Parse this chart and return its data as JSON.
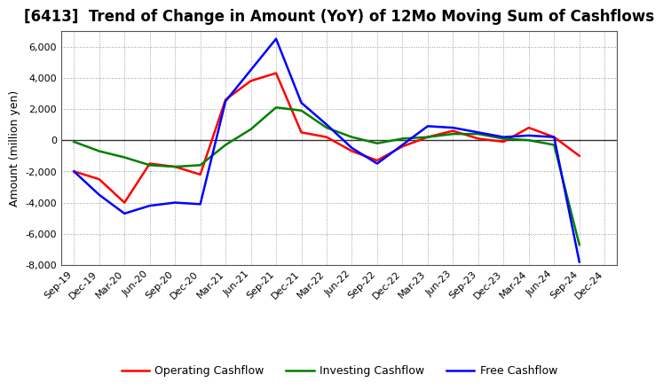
{
  "title": "[6413]  Trend of Change in Amount (YoY) of 12Mo Moving Sum of Cashflows",
  "ylabel": "Amount (million yen)",
  "x_labels": [
    "Sep-19",
    "Dec-19",
    "Mar-20",
    "Jun-20",
    "Sep-20",
    "Dec-20",
    "Mar-21",
    "Jun-21",
    "Sep-21",
    "Dec-21",
    "Mar-22",
    "Jun-22",
    "Sep-22",
    "Dec-22",
    "Mar-23",
    "Jun-23",
    "Sep-23",
    "Dec-23",
    "Mar-24",
    "Jun-24",
    "Sep-24",
    "Dec-24"
  ],
  "operating": [
    -2000,
    -2500,
    -4000,
    -1500,
    -1700,
    -2200,
    2600,
    3800,
    4300,
    500,
    200,
    -700,
    -1300,
    -400,
    200,
    600,
    100,
    -100,
    800,
    200,
    -1000,
    null
  ],
  "investing": [
    -100,
    -700,
    -1100,
    -1600,
    -1700,
    -1600,
    -300,
    700,
    2100,
    1900,
    800,
    200,
    -200,
    100,
    200,
    400,
    400,
    100,
    0,
    -300,
    -6700,
    null
  ],
  "free": [
    -2000,
    -3500,
    -4700,
    -4200,
    -4000,
    -4100,
    2500,
    4500,
    6500,
    2400,
    1000,
    -500,
    -1500,
    -300,
    900,
    800,
    500,
    200,
    300,
    200,
    -7800,
    null
  ],
  "operating_color": "#ff0000",
  "investing_color": "#008000",
  "free_color": "#0000ff",
  "ylim": [
    -8000,
    7000
  ],
  "yticks": [
    -8000,
    -6000,
    -4000,
    -2000,
    0,
    2000,
    4000,
    6000
  ],
  "bg_color": "#ffffff",
  "grid_color": "#999999",
  "title_fontsize": 12,
  "label_fontsize": 9,
  "tick_fontsize": 8,
  "legend_fontsize": 9
}
